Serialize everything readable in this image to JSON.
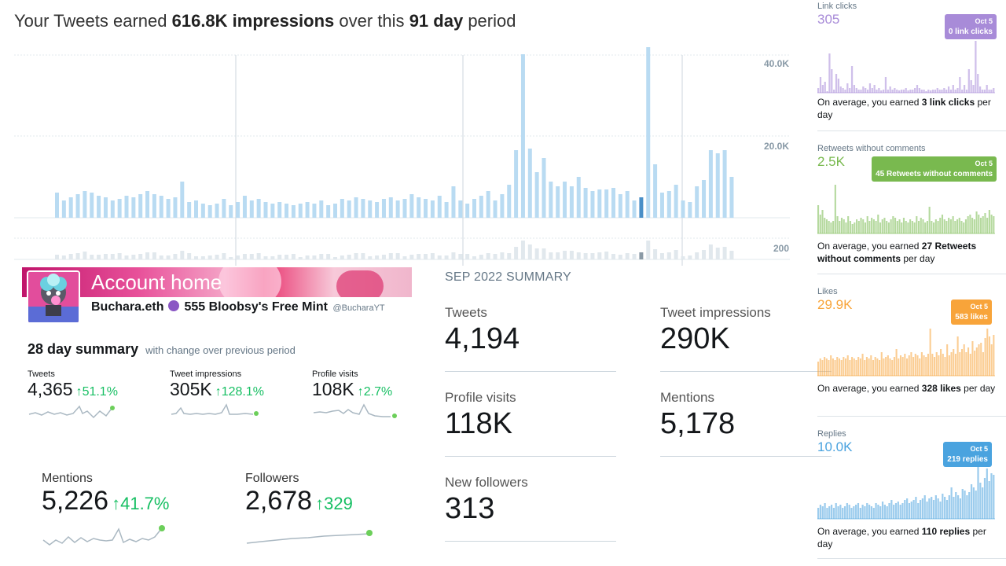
{
  "headline": {
    "prefix": "Your Tweets earned",
    "impressions": "616.8K impressions",
    "mid": "over this",
    "days": "91 day",
    "suffix": "period"
  },
  "main_chart": {
    "y_ticks": [
      "40.0K",
      "20.0K"
    ],
    "lower_tick": "200",
    "colors": {
      "bar": "#b9dbf2",
      "highlight": "#4a8fc7",
      "lower": "#e1e8ed",
      "lower_highlight": "#8a9aa6"
    }
  },
  "account": {
    "banner_title": "Account home",
    "name": "Buchara.eth",
    "name_suffix": "555 Bloobsy's Free Mint",
    "handle": "@BucharaYT",
    "summary_title": "28 day summary",
    "summary_sub": "with change over previous period",
    "metrics": [
      {
        "label": "Tweets",
        "value": "4,365",
        "change": "51.1%"
      },
      {
        "label": "Tweet impressions",
        "value": "305K",
        "change": "128.1%"
      },
      {
        "label": "Profile visits",
        "value": "108K",
        "change": "2.7%"
      },
      {
        "label": "Mentions",
        "value": "5,226",
        "change": "41.7%"
      },
      {
        "label": "Followers",
        "value": "2,678",
        "change": "329"
      }
    ]
  },
  "sep_summary": {
    "title": "SEP 2022 SUMMARY",
    "stats": [
      {
        "label": "Tweets",
        "value": "4,194"
      },
      {
        "label": "Tweet impressions",
        "value": "290K"
      },
      {
        "label": "Profile visits",
        "value": "118K"
      },
      {
        "label": "Mentions",
        "value": "5,178"
      },
      {
        "label": "New followers",
        "value": "313"
      }
    ]
  },
  "right_panels": [
    {
      "title": "Link clicks",
      "total": "305",
      "color": "#a88bd8",
      "tip_date": "Oct 5",
      "tip_text": "0 link clicks",
      "avg_pre": "On average, you earned ",
      "avg_bold": "3 link clicks",
      "avg_post": " per day"
    },
    {
      "title": "Retweets without comments",
      "total": "2.5K",
      "color": "#79b94f",
      "tip_date": "Oct 5",
      "tip_text": "45 Retweets without comments",
      "avg_pre": "On average, you earned ",
      "avg_bold": "27 Retweets without comments",
      "avg_post": " per day"
    },
    {
      "title": "Likes",
      "total": "29.9K",
      "color": "#f8a43a",
      "tip_date": "Oct 5",
      "tip_text": "583 likes",
      "avg_pre": "On average, you earned ",
      "avg_bold": "328 likes",
      "avg_post": " per day"
    },
    {
      "title": "Replies",
      "total": "10.0K",
      "color": "#4aa3df",
      "tip_date": "Oct 5",
      "tip_text": "219 replies",
      "avg_pre": "On average, you earned ",
      "avg_bold": "110 replies",
      "avg_post": " per day"
    }
  ]
}
